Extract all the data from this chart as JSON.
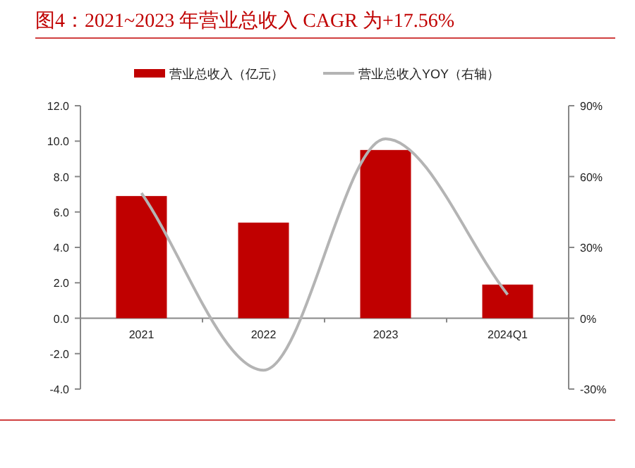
{
  "chart_data": {
    "type": "bar",
    "title": "图4：2021~2023 年营业总收入 CAGR 为+17.56%",
    "categories": [
      "2021",
      "2022",
      "2023",
      "2024Q1"
    ],
    "series": [
      {
        "name": "营业总收入（亿元）",
        "color": "#c00000",
        "values": [
          6.9,
          5.4,
          9.5,
          1.9
        ]
      },
      {
        "name": "营业总收入YOY（右轴）",
        "type": "line",
        "axis": "y2",
        "color": "#b4b4b4",
        "values": [
          53,
          -22,
          76,
          10
        ]
      }
    ],
    "ylim": [
      -4,
      12
    ],
    "yticks": [
      {
        "value": -4,
        "label": "-4.0"
      },
      {
        "value": -2,
        "label": "-2.0"
      },
      {
        "value": 0,
        "label": "0.0"
      },
      {
        "value": 2,
        "label": "2.0"
      },
      {
        "value": 4,
        "label": "4.0"
      },
      {
        "value": 6,
        "label": "6.0"
      },
      {
        "value": 8,
        "label": "8.0"
      },
      {
        "value": 10,
        "label": "10.0"
      },
      {
        "value": 12,
        "label": "12.0"
      }
    ],
    "y2lim": [
      -30,
      90
    ],
    "y2ticks": [
      {
        "value": -30,
        "label": "-30%"
      },
      {
        "value": 0,
        "label": "0%"
      },
      {
        "value": 30,
        "label": "30%"
      },
      {
        "value": 60,
        "label": "60%"
      },
      {
        "value": 90,
        "label": "90%"
      }
    ],
    "legend": "top"
  }
}
